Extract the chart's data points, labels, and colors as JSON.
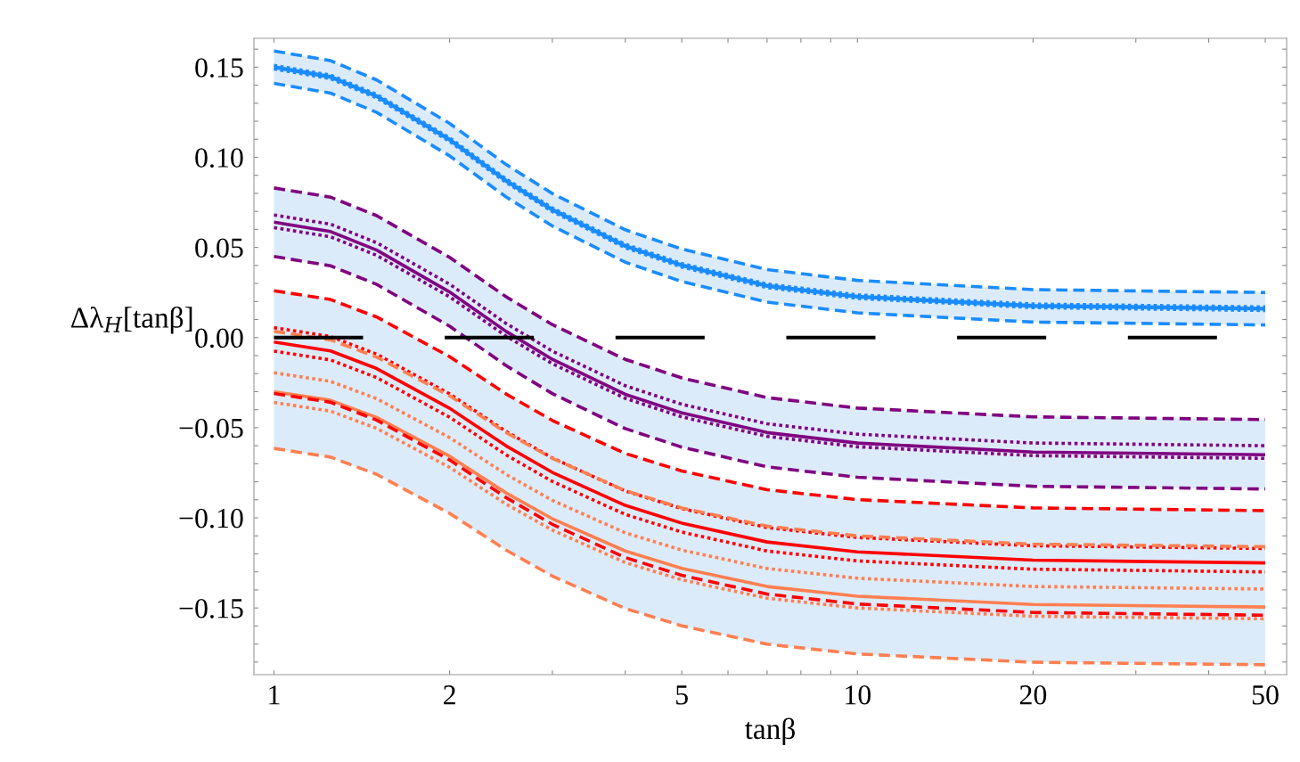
{
  "chart_data": {
    "type": "line",
    "xlabel": "tanβ",
    "ylabel": "Δλ$_{H}$[tanβ]",
    "log": "x",
    "grid": false,
    "legend": false,
    "x": [
      1,
      1.25,
      1.5,
      2,
      2.5,
      3,
      4,
      5,
      7,
      10,
      20,
      50
    ],
    "xlim": [
      0.924,
      54.4
    ],
    "xticks": [
      1,
      2,
      5,
      10,
      20,
      50,
      {
        "value": 3,
        "label": null
      },
      {
        "value": 4,
        "label": null
      },
      {
        "value": 6,
        "label": null
      },
      {
        "value": 7,
        "label": null
      },
      {
        "value": 8,
        "label": null
      },
      {
        "value": 9,
        "label": null
      },
      {
        "value": 30,
        "label": null
      },
      {
        "value": 40,
        "label": null
      }
    ],
    "ylim": [
      -0.187,
      0.166
    ],
    "yticks": [
      {
        "value": -0.15,
        "label": "−0.15"
      },
      {
        "value": -0.1,
        "label": "−0.10"
      },
      {
        "value": -0.05,
        "label": "−0.05"
      },
      {
        "value": 0,
        "label": "0.00"
      },
      {
        "value": 0.05,
        "label": "0.05"
      },
      {
        "value": 0.1,
        "label": "0.10"
      },
      {
        "value": 0.15,
        "label": "0.15"
      },
      {
        "value": -0.18,
        "label": null
      },
      {
        "value": -0.17,
        "label": null
      },
      {
        "value": -0.16,
        "label": null
      },
      {
        "value": -0.14,
        "label": null
      },
      {
        "value": -0.13,
        "label": null
      },
      {
        "value": -0.12,
        "label": null
      },
      {
        "value": -0.11,
        "label": null
      },
      {
        "value": -0.09,
        "label": null
      },
      {
        "value": -0.08,
        "label": null
      },
      {
        "value": -0.07,
        "label": null
      },
      {
        "value": -0.06,
        "label": null
      },
      {
        "value": -0.04,
        "label": null
      },
      {
        "value": -0.03,
        "label": null
      },
      {
        "value": -0.02,
        "label": null
      },
      {
        "value": -0.01,
        "label": null
      },
      {
        "value": 0.01,
        "label": null
      },
      {
        "value": 0.02,
        "label": null
      },
      {
        "value": 0.03,
        "label": null
      },
      {
        "value": 0.04,
        "label": null
      },
      {
        "value": 0.06,
        "label": null
      },
      {
        "value": 0.07,
        "label": null
      },
      {
        "value": 0.08,
        "label": null
      },
      {
        "value": 0.09,
        "label": null
      },
      {
        "value": 0.11,
        "label": null
      },
      {
        "value": 0.12,
        "label": null
      },
      {
        "value": 0.13,
        "label": null
      },
      {
        "value": 0.14,
        "label": null
      },
      {
        "value": 0.16,
        "label": null
      }
    ],
    "ref_lines": [
      {
        "axis": "y",
        "value": 0,
        "color": "#000000",
        "line_style": "dashed"
      }
    ],
    "series": [
      {
        "color": "#1a8cff",
        "line_style": "solid",
        "values": [
          0.15,
          0.1446,
          0.1339,
          0.1098,
          0.087,
          0.0709,
          0.0508,
          0.0401,
          0.0287,
          0.0227,
          0.0176,
          0.016
        ],
        "lower": [
          0.141,
          0.1356,
          0.1249,
          0.1008,
          0.078,
          0.0619,
          0.0418,
          0.0311,
          0.0197,
          0.0137,
          0.0086,
          0.007
        ],
        "upper": [
          0.159,
          0.1536,
          0.1429,
          0.1188,
          0.096,
          0.0799,
          0.0598,
          0.0491,
          0.0377,
          0.0317,
          0.0266,
          0.025
        ]
      },
      {
        "color": "#800080",
        "line_style": "solid",
        "values": [
          0.064,
          0.0588,
          0.0485,
          0.0253,
          0.0034,
          -0.0121,
          -0.0315,
          -0.0418,
          -0.0527,
          -0.0585,
          -0.0635,
          -0.065
        ],
        "lower": [
          0.045,
          0.0398,
          0.0295,
          0.0063,
          -0.0156,
          -0.0311,
          -0.0505,
          -0.0608,
          -0.0717,
          -0.0775,
          -0.0825,
          -0.084
        ],
        "upper": [
          0.083,
          0.0779,
          0.0676,
          0.0445,
          0.0226,
          0.0072,
          -0.0121,
          -0.0224,
          -0.0333,
          -0.0391,
          -0.044,
          -0.0455
        ]
      },
      {
        "color": "#ff0000",
        "line_style": "solid",
        "values": [
          -0.0025,
          -0.0074,
          -0.0172,
          -0.0392,
          -0.0601,
          -0.0748,
          -0.0931,
          -0.1029,
          -0.1134,
          -0.1189,
          -0.1235,
          -0.125
        ],
        "lower": [
          -0.0615,
          -0.0663,
          -0.0759,
          -0.0975,
          -0.1179,
          -0.1323,
          -0.1503,
          -0.1599,
          -0.1701,
          -0.1755,
          -0.1801,
          -0.1815
        ],
        "upper": [
          0.026,
          0.0211,
          0.0114,
          -0.0106,
          -0.0313,
          -0.046,
          -0.0643,
          -0.074,
          -0.0844,
          -0.0899,
          -0.0945,
          -0.096
        ]
      },
      {
        "color": "#ff7f50",
        "line_style": "solid",
        "values": [
          -0.03,
          -0.0348,
          -0.0443,
          -0.0658,
          -0.0862,
          -0.1005,
          -0.1184,
          -0.128,
          -0.1381,
          -0.1435,
          -0.1481,
          -0.1495
        ]
      },
      {
        "color": "#1a8cff",
        "line_style": "dashed",
        "values": [
          0.159,
          0.1536,
          0.1429,
          0.1188,
          0.096,
          0.0799,
          0.0598,
          0.0491,
          0.0377,
          0.0317,
          0.0266,
          0.025
        ]
      },
      {
        "color": "#1a8cff",
        "line_style": "dashed",
        "values": [
          0.141,
          0.1356,
          0.1249,
          0.1008,
          0.078,
          0.0619,
          0.0418,
          0.0311,
          0.0197,
          0.0137,
          0.0086,
          0.007
        ]
      },
      {
        "color": "#1a8cff",
        "line_style": "dotted",
        "values": [
          0.151,
          0.1456,
          0.1349,
          0.1108,
          0.088,
          0.0719,
          0.0518,
          0.0411,
          0.0297,
          0.0237,
          0.0186,
          0.017
        ]
      },
      {
        "color": "#1a8cff",
        "line_style": "dotted",
        "values": [
          0.149,
          0.1436,
          0.1329,
          0.1088,
          0.086,
          0.0699,
          0.0498,
          0.0391,
          0.0277,
          0.0217,
          0.0166,
          0.015
        ]
      },
      {
        "color": "#800080",
        "line_style": "dashed",
        "values": [
          0.083,
          0.0779,
          0.0676,
          0.0445,
          0.0226,
          0.0072,
          -0.0121,
          -0.0224,
          -0.0333,
          -0.0391,
          -0.044,
          -0.0455
        ]
      },
      {
        "color": "#800080",
        "line_style": "dotted",
        "values": [
          0.068,
          0.0629,
          0.0526,
          0.0296,
          0.0078,
          -0.0075,
          -0.0267,
          -0.037,
          -0.0478,
          -0.0536,
          -0.0585,
          -0.06
        ]
      },
      {
        "color": "#800080",
        "line_style": "dotted",
        "values": [
          0.061,
          0.0559,
          0.0456,
          0.0226,
          0.0008,
          -0.0145,
          -0.0337,
          -0.044,
          -0.0548,
          -0.0606,
          -0.0655,
          -0.067
        ]
      },
      {
        "color": "#800080",
        "line_style": "dashed",
        "values": [
          0.045,
          0.0398,
          0.0295,
          0.0063,
          -0.0156,
          -0.0311,
          -0.0505,
          -0.0608,
          -0.0717,
          -0.0775,
          -0.0825,
          -0.084
        ]
      },
      {
        "color": "#ff0000",
        "line_style": "dashed",
        "values": [
          0.026,
          0.0211,
          0.0114,
          -0.0106,
          -0.0313,
          -0.046,
          -0.0643,
          -0.074,
          -0.0844,
          -0.0899,
          -0.0945,
          -0.096
        ]
      },
      {
        "color": "#ff0000",
        "line_style": "dotted",
        "values": [
          0.0055,
          0.0006,
          -0.0092,
          -0.0312,
          -0.0521,
          -0.0668,
          -0.0851,
          -0.0949,
          -0.1054,
          -0.1109,
          -0.1155,
          -0.117
        ]
      },
      {
        "color": "#ff0000",
        "line_style": "dotted",
        "values": [
          -0.0075,
          -0.0124,
          -0.0222,
          -0.0442,
          -0.0651,
          -0.0798,
          -0.0981,
          -0.1079,
          -0.1184,
          -0.1239,
          -0.1285,
          -0.13
        ]
      },
      {
        "color": "#ff0000",
        "line_style": "dashed",
        "values": [
          -0.031,
          -0.0359,
          -0.0458,
          -0.0679,
          -0.0888,
          -0.1036,
          -0.122,
          -0.1319,
          -0.1423,
          -0.1478,
          -0.1525,
          -0.154
        ]
      },
      {
        "color": "#ff7f50",
        "line_style": "dashed",
        "values": [
          0.0035,
          -0.0013,
          -0.0108,
          -0.0323,
          -0.0527,
          -0.067,
          -0.0849,
          -0.0945,
          -0.1046,
          -0.11,
          -0.1146,
          -0.116
        ]
      },
      {
        "color": "#ff7f50",
        "line_style": "dotted",
        "values": [
          -0.0195,
          -0.0243,
          -0.0339,
          -0.0555,
          -0.0759,
          -0.0903,
          -0.1083,
          -0.1179,
          -0.1281,
          -0.1335,
          -0.1381,
          -0.1395
        ]
      },
      {
        "color": "#ff7f50",
        "line_style": "dotted",
        "values": [
          -0.036,
          -0.0408,
          -0.0504,
          -0.072,
          -0.0924,
          -0.1068,
          -0.1248,
          -0.1344,
          -0.1446,
          -0.15,
          -0.1546,
          -0.156
        ]
      },
      {
        "color": "#ff7f50",
        "line_style": "dashed",
        "values": [
          -0.0615,
          -0.0663,
          -0.0759,
          -0.0975,
          -0.1179,
          -0.1323,
          -0.1503,
          -0.1599,
          -0.1701,
          -0.1755,
          -0.1801,
          -0.1815
        ]
      }
    ]
  }
}
